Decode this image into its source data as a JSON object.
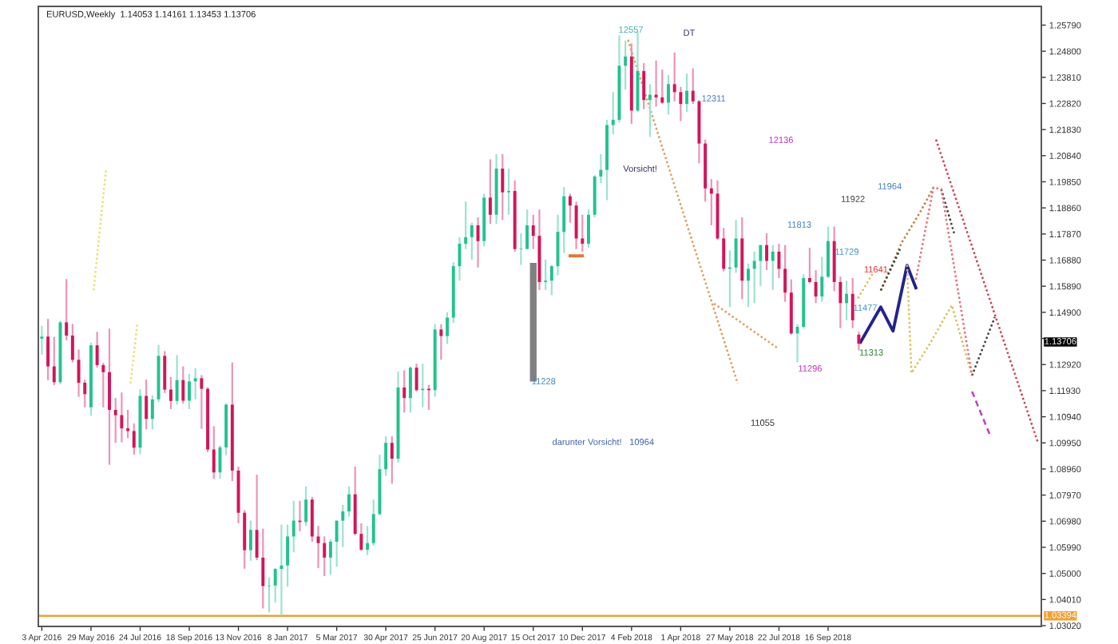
{
  "chart_data": {
    "type": "candlestick",
    "title": "EURUSD,Weekly  1.14053 1.14161 1.13453 1.13706",
    "colors": [
      "#22c38e",
      "#d4145a",
      "#d4145a",
      "#22c38e",
      "#d4145a",
      "#d4145a",
      "#d4145a",
      "#d4145a",
      "#22c38e",
      "#d4145a",
      "#d4145a",
      "#d4145a",
      "#d4145a",
      "#d4145a",
      "#d4145a",
      "#d4145a",
      "#22c38e",
      "#d4145a",
      "#22c38e",
      "#22c38e",
      "#d4145a",
      "#d4145a",
      "#22c38e",
      "#d4145a",
      "#22c38e",
      "#22c38e",
      "#d4145a",
      "#d4145a",
      "#d4145a",
      "#22c38e",
      "#22c38e",
      "#d4145a",
      "#d4145a",
      "#d4145a",
      "#22c38e",
      "#d4145a",
      "#d4145a",
      "#22c38e",
      "#22c38e",
      "#22c38e",
      "#22c38e",
      "#22c38e",
      "#d4145a",
      "#22c38e",
      "#d4145a",
      "#d4145a",
      "#d4145a",
      "#22c38e",
      "#22c38e",
      "#22c38e",
      "#22c38e",
      "#d4145a",
      "#d4145a",
      "#22c38e",
      "#22c38e",
      "#22c38e",
      "#22c38e",
      "#d4145a",
      "#22c38e",
      "#d4145a",
      "#22c38e",
      "#d4145a",
      "#22c38e",
      "#d4145a",
      "#22c38e",
      "#d4145a",
      "#22c38e",
      "#22c38e",
      "#22c38e",
      "#22c38e",
      "#22c38e",
      "#d4145a",
      "#22c38e",
      "#d4145a",
      "#22c38e",
      "#d4145a",
      "#22c38e",
      "#d4145a",
      "#22c38e",
      "#22c38e",
      "#d4145a",
      "#d4145a",
      "#22c38e",
      "#22c38e",
      "#22c38e",
      "#22c38e",
      "#d4145a",
      "#d4145a",
      "#d4145a",
      "#22c38e",
      "#22c38e",
      "#22c38e",
      "#22c38e",
      "#22c38e",
      "#22c38e",
      "#22c38e",
      "#d4145a",
      "#22c38e",
      "#d4145a",
      "#22c38e",
      "#d4145a",
      "#d4145a",
      "#22c38e",
      "#d4145a",
      "#d4145a",
      "#22c38e",
      "#d4145a",
      "#d4145a",
      "#d4145a",
      "#d4145a",
      "#d4145a",
      "#d4145a",
      "#22c38e",
      "#22c38e",
      "#d4145a",
      "#22c38e",
      "#22c38e",
      "#22c38e",
      "#d4145a",
      "#22c38e",
      "#d4145a",
      "#d4145a",
      "#d4145a",
      "#22c38e",
      "#22c38e",
      "#d4145a",
      "#d4145a",
      "#22c38e",
      "#22c38e",
      "#d4145a",
      "#d4145a",
      "#22c38e",
      "#d4145a",
      "#d4145a"
    ],
    "x": [
      "2016-04-03",
      "2016-04-10",
      "2016-04-17",
      "2016-04-24",
      "2016-05-01",
      "2016-05-08",
      "2016-05-15",
      "2016-05-22",
      "2016-05-29",
      "2016-06-05",
      "2016-06-12",
      "2016-06-19",
      "2016-06-26",
      "2016-07-03",
      "2016-07-10",
      "2016-07-17",
      "2016-07-24",
      "2016-07-31",
      "2016-08-07",
      "2016-08-14",
      "2016-08-21",
      "2016-08-28",
      "2016-09-04",
      "2016-09-11",
      "2016-09-18",
      "2016-09-25",
      "2016-10-02",
      "2016-10-09",
      "2016-10-16",
      "2016-10-23",
      "2016-10-30",
      "2016-11-06",
      "2016-11-13",
      "2016-11-20",
      "2016-11-27",
      "2016-12-04",
      "2016-12-11",
      "2016-12-18",
      "2016-12-25",
      "2017-01-01",
      "2017-01-08",
      "2017-01-15",
      "2017-01-22",
      "2017-01-29",
      "2017-02-05",
      "2017-02-12",
      "2017-02-19",
      "2017-02-26",
      "2017-03-05",
      "2017-03-12",
      "2017-03-19",
      "2017-03-26",
      "2017-04-02",
      "2017-04-09",
      "2017-04-16",
      "2017-04-23",
      "2017-04-30",
      "2017-05-07",
      "2017-05-14",
      "2017-05-21",
      "2017-05-28",
      "2017-06-04",
      "2017-06-11",
      "2017-06-18",
      "2017-06-25",
      "2017-07-02",
      "2017-07-09",
      "2017-07-16",
      "2017-07-23",
      "2017-07-30",
      "2017-08-06",
      "2017-08-13",
      "2017-08-20",
      "2017-08-27",
      "2017-09-03",
      "2017-09-10",
      "2017-09-17",
      "2017-09-24",
      "2017-10-01",
      "2017-10-08",
      "2017-10-15",
      "2017-10-22",
      "2017-10-29",
      "2017-11-05",
      "2017-11-12",
      "2017-11-19",
      "2017-11-26",
      "2017-12-03",
      "2017-12-10",
      "2017-12-17",
      "2017-12-24",
      "2017-12-31",
      "2018-01-07",
      "2018-01-14",
      "2018-01-21",
      "2018-01-28",
      "2018-02-04",
      "2018-02-11",
      "2018-02-18",
      "2018-02-25",
      "2018-03-04",
      "2018-03-11",
      "2018-03-18",
      "2018-03-25",
      "2018-04-01",
      "2018-04-08",
      "2018-04-15",
      "2018-04-22",
      "2018-04-29",
      "2018-05-06",
      "2018-05-13",
      "2018-05-20",
      "2018-05-27",
      "2018-06-03",
      "2018-06-10",
      "2018-06-17",
      "2018-06-24",
      "2018-07-01",
      "2018-07-08",
      "2018-07-15",
      "2018-07-22",
      "2018-07-29",
      "2018-08-05",
      "2018-08-12",
      "2018-08-19",
      "2018-08-26",
      "2018-09-02",
      "2018-09-09",
      "2018-09-16",
      "2018-09-23",
      "2018-09-30",
      "2018-10-07",
      "2018-10-14",
      "2018-10-21"
    ],
    "ohlc": [
      [
        1.139,
        1.1438,
        1.133,
        1.1398
      ],
      [
        1.1398,
        1.1465,
        1.1233,
        1.1285
      ],
      [
        1.1285,
        1.1397,
        1.1214,
        1.1225
      ],
      [
        1.1225,
        1.1458,
        1.1217,
        1.1452
      ],
      [
        1.1452,
        1.1616,
        1.1384,
        1.1402
      ],
      [
        1.1402,
        1.1446,
        1.13,
        1.131
      ],
      [
        1.131,
        1.1349,
        1.117,
        1.1223
      ],
      [
        1.1223,
        1.1234,
        1.113,
        1.118
      ],
      [
        1.113,
        1.1375,
        1.1098,
        1.1365
      ],
      [
        1.1365,
        1.1416,
        1.128,
        1.129
      ],
      [
        1.129,
        1.1298,
        1.113,
        1.1263
      ],
      [
        1.1263,
        1.1428,
        1.0912,
        1.112
      ],
      [
        1.112,
        1.1165,
        1.0995,
        1.11
      ],
      [
        1.11,
        1.1186,
        1.0997,
        1.105
      ],
      [
        1.105,
        1.112,
        1.1013,
        1.104
      ],
      [
        1.104,
        1.1068,
        1.095,
        1.0977
      ],
      [
        1.0977,
        1.1198,
        1.0952,
        1.1173
      ],
      [
        1.1173,
        1.1235,
        1.1046,
        1.1086
      ],
      [
        1.1086,
        1.1175,
        1.1046,
        1.116
      ],
      [
        1.116,
        1.1366,
        1.115,
        1.1325
      ],
      [
        1.1325,
        1.1343,
        1.1184,
        1.1197
      ],
      [
        1.1197,
        1.1245,
        1.1123,
        1.1154
      ],
      [
        1.1154,
        1.1328,
        1.114,
        1.1233
      ],
      [
        1.1233,
        1.1285,
        1.1144,
        1.1155
      ],
      [
        1.1155,
        1.1257,
        1.1123,
        1.1228
      ],
      [
        1.1228,
        1.1278,
        1.116,
        1.124
      ],
      [
        1.124,
        1.1252,
        1.1048,
        1.12
      ],
      [
        1.12,
        1.1206,
        1.096,
        1.097
      ],
      [
        1.097,
        1.1058,
        1.0858,
        1.0883
      ],
      [
        1.0883,
        1.0985,
        1.086,
        1.0978
      ],
      [
        1.0978,
        1.1145,
        1.0948,
        1.114
      ],
      [
        1.114,
        1.13,
        1.085,
        1.089
      ],
      [
        1.089,
        1.0905,
        1.069,
        1.073
      ],
      [
        1.073,
        1.074,
        1.0518,
        1.0588
      ],
      [
        1.0588,
        1.07,
        1.0548,
        1.0665
      ],
      [
        1.0665,
        1.0874,
        1.055,
        1.056
      ],
      [
        1.056,
        1.067,
        1.0367,
        1.0452
      ],
      [
        1.0452,
        1.0485,
        1.0352,
        1.0454
      ],
      [
        1.0454,
        1.052,
        1.039,
        1.0517
      ],
      [
        1.0517,
        1.0685,
        1.034,
        1.053
      ],
      [
        1.053,
        1.0685,
        1.045,
        1.064
      ],
      [
        1.064,
        1.0775,
        1.058,
        1.07
      ],
      [
        1.07,
        1.0775,
        1.066,
        1.0695
      ],
      [
        1.0695,
        1.083,
        1.068,
        1.078
      ],
      [
        1.078,
        1.079,
        1.062,
        1.064
      ],
      [
        1.064,
        1.068,
        1.052,
        1.0615
      ],
      [
        1.0615,
        1.064,
        1.049,
        1.056
      ],
      [
        1.056,
        1.063,
        1.0495,
        1.062
      ],
      [
        1.062,
        1.07,
        1.0525,
        1.07
      ],
      [
        1.07,
        1.076,
        1.06,
        1.0735
      ],
      [
        1.0735,
        1.083,
        1.0715,
        1.08
      ],
      [
        1.08,
        1.0905,
        1.0645,
        1.065
      ],
      [
        1.065,
        1.069,
        1.0585,
        1.059
      ],
      [
        1.059,
        1.068,
        1.057,
        1.0615
      ],
      [
        1.0615,
        1.078,
        1.0605,
        1.0725
      ],
      [
        1.0725,
        1.095,
        1.072,
        1.0895
      ],
      [
        1.0895,
        1.102,
        1.087,
        1.0995
      ],
      [
        1.0995,
        1.102,
        1.084,
        1.0935
      ],
      [
        1.0935,
        1.1265,
        1.092,
        1.1205
      ],
      [
        1.1205,
        1.127,
        1.111,
        1.1165
      ],
      [
        1.1165,
        1.1285,
        1.111,
        1.128
      ],
      [
        1.128,
        1.1295,
        1.119,
        1.1195
      ],
      [
        1.1195,
        1.1295,
        1.113,
        1.12
      ],
      [
        1.12,
        1.1215,
        1.112,
        1.1195
      ],
      [
        1.1195,
        1.1445,
        1.117,
        1.1425
      ],
      [
        1.1425,
        1.1445,
        1.131,
        1.14
      ],
      [
        1.14,
        1.149,
        1.137,
        1.147
      ],
      [
        1.147,
        1.168,
        1.145,
        1.1665
      ],
      [
        1.1665,
        1.1775,
        1.161,
        1.175
      ],
      [
        1.175,
        1.191,
        1.173,
        1.1775
      ],
      [
        1.1775,
        1.183,
        1.169,
        1.182
      ],
      [
        1.182,
        1.185,
        1.166,
        1.176
      ],
      [
        1.176,
        1.194,
        1.174,
        1.1925
      ],
      [
        1.1925,
        1.207,
        1.1825,
        1.186
      ],
      [
        1.186,
        1.209,
        1.1825,
        1.2035
      ],
      [
        1.2035,
        1.209,
        1.184,
        1.1945
      ],
      [
        1.1945,
        1.2035,
        1.186,
        1.195
      ],
      [
        1.195,
        1.199,
        1.172,
        1.173
      ],
      [
        1.173,
        1.179,
        1.167,
        1.173
      ],
      [
        1.173,
        1.188,
        1.173,
        1.182
      ],
      [
        1.182,
        1.186,
        1.173,
        1.178
      ],
      [
        1.178,
        1.188,
        1.1575,
        1.1605
      ],
      [
        1.1605,
        1.169,
        1.1575,
        1.161
      ],
      [
        1.161,
        1.167,
        1.1555,
        1.1665
      ],
      [
        1.1665,
        1.186,
        1.163,
        1.1795
      ],
      [
        1.1795,
        1.1965,
        1.1715,
        1.193
      ],
      [
        1.193,
        1.194,
        1.183,
        1.1895
      ],
      [
        1.1895,
        1.191,
        1.173,
        1.177
      ],
      [
        1.177,
        1.186,
        1.172,
        1.175
      ],
      [
        1.175,
        1.188,
        1.1735,
        1.186
      ],
      [
        1.186,
        1.201,
        1.185,
        1.2005
      ],
      [
        1.2005,
        1.209,
        1.198,
        1.203
      ],
      [
        1.203,
        1.222,
        1.1915,
        1.22
      ],
      [
        1.22,
        1.2325,
        1.2165,
        1.222
      ],
      [
        1.222,
        1.254,
        1.221,
        1.2425
      ],
      [
        1.2425,
        1.252,
        1.2335,
        1.246
      ],
      [
        1.246,
        1.251,
        1.2205,
        1.2255
      ],
      [
        1.2255,
        1.2555,
        1.225,
        1.2405
      ],
      [
        1.2405,
        1.2435,
        1.226,
        1.2295
      ],
      [
        1.2295,
        1.2355,
        1.2155,
        1.2315
      ],
      [
        1.2315,
        1.2445,
        1.227,
        1.2305
      ],
      [
        1.2305,
        1.241,
        1.228,
        1.2285
      ],
      [
        1.2285,
        1.239,
        1.224,
        1.2355
      ],
      [
        1.2355,
        1.2475,
        1.229,
        1.2325
      ],
      [
        1.2325,
        1.2345,
        1.2215,
        1.228
      ],
      [
        1.228,
        1.2395,
        1.225,
        1.233
      ],
      [
        1.233,
        1.2415,
        1.228,
        1.229
      ],
      [
        1.229,
        1.2295,
        1.2055,
        1.213
      ],
      [
        1.213,
        1.2145,
        1.191,
        1.196
      ],
      [
        1.196,
        1.1995,
        1.182,
        1.194
      ],
      [
        1.194,
        1.199,
        1.1765,
        1.177
      ],
      [
        1.177,
        1.181,
        1.1645,
        1.1655
      ],
      [
        1.1655,
        1.1725,
        1.151,
        1.166
      ],
      [
        1.166,
        1.184,
        1.164,
        1.177
      ],
      [
        1.177,
        1.185,
        1.154,
        1.161
      ],
      [
        1.161,
        1.1675,
        1.151,
        1.1655
      ],
      [
        1.1655,
        1.172,
        1.1525,
        1.1685
      ],
      [
        1.1685,
        1.1745,
        1.159,
        1.1745
      ],
      [
        1.1745,
        1.179,
        1.165,
        1.1685
      ],
      [
        1.1685,
        1.1745,
        1.1575,
        1.172
      ],
      [
        1.172,
        1.175,
        1.162,
        1.1655
      ],
      [
        1.1655,
        1.1745,
        1.153,
        1.1565
      ],
      [
        1.1565,
        1.1615,
        1.1405,
        1.141
      ],
      [
        1.141,
        1.1445,
        1.13,
        1.1435
      ],
      [
        1.1435,
        1.1635,
        1.143,
        1.162
      ],
      [
        1.162,
        1.1735,
        1.16,
        1.1605
      ],
      [
        1.1605,
        1.165,
        1.1525,
        1.155
      ],
      [
        1.155,
        1.17,
        1.153,
        1.1625
      ],
      [
        1.1625,
        1.1815,
        1.162,
        1.176
      ],
      [
        1.176,
        1.1815,
        1.157,
        1.1605
      ],
      [
        1.1605,
        1.1625,
        1.143,
        1.1525
      ],
      [
        1.1525,
        1.161,
        1.146,
        1.156
      ],
      [
        1.156,
        1.162,
        1.143,
        1.146
      ],
      [
        1.14053,
        1.14161,
        1.13453,
        1.13706
      ]
    ],
    "series": [
      {
        "type": "line",
        "color": "#23238e",
        "line_style": "solid",
        "x": [
          "2018-10-23",
          "2018-11-15",
          "2018-11-29",
          "2018-12-15",
          "2018-12-25"
        ],
        "values": [
          1.1377,
          1.151,
          1.1419,
          1.1668,
          1.1583
        ]
      },
      {
        "type": "line",
        "color": "#d8c060",
        "line_style": "dotted",
        "x": [
          "2018-10-20",
          "2018-11-07"
        ],
        "values": [
          1.1543,
          1.1644
        ]
      },
      {
        "type": "line",
        "color": "#d8c060",
        "line_style": "dotted",
        "x": [
          "2018-12-15",
          "2018-12-20",
          "2019-01-10",
          "2019-02-04",
          "2019-02-27"
        ],
        "values": [
          1.167,
          1.126,
          1.1371,
          1.1517,
          1.125
        ]
      },
      {
        "type": "line",
        "color": "#c08040",
        "line_style": "dotted",
        "x": [
          "2018-11-15",
          "2018-12-09",
          "2018-12-31",
          "2019-01-14"
        ],
        "values": [
          1.1573,
          1.1755,
          1.1876,
          1.1963
        ]
      },
      {
        "type": "line",
        "color": "#404040",
        "line_style": "dotted",
        "x": [
          "2018-11-15",
          "2018-12-07"
        ],
        "values": [
          1.1573,
          1.1729
        ]
      },
      {
        "type": "line",
        "color": "#404040",
        "line_style": "dotted",
        "x": [
          "2019-01-23",
          "2019-02-07"
        ],
        "values": [
          1.1957,
          1.1785
        ]
      },
      {
        "type": "line",
        "color": "#404040",
        "line_style": "dotted",
        "x": [
          "2019-02-27",
          "2019-03-25"
        ],
        "values": [
          1.125,
          1.1472
        ]
      },
      {
        "type": "line",
        "color": "#e07080",
        "line_style": "dotted",
        "x": [
          "2018-12-25",
          "2019-01-14",
          "2019-01-23",
          "2019-02-27"
        ],
        "values": [
          1.1614,
          1.1963,
          1.1957,
          1.125
        ]
      },
      {
        "type": "line",
        "color": "#d04050",
        "line_style": "dotted",
        "x": [
          "2019-01-17",
          "2019-05-13"
        ],
        "values": [
          1.2145,
          1.0997
        ]
      },
      {
        "type": "line",
        "color": "#c040c0",
        "line_style": "dashed",
        "x": [
          "2019-02-27",
          "2019-03-19"
        ],
        "values": [
          1.119,
          1.1028
        ]
      },
      {
        "type": "line",
        "color": "#d8a060",
        "line_style": "dotted",
        "x": [
          "2018-01-31",
          "2018-06-05"
        ],
        "values": [
          1.2523,
          1.122
        ]
      },
      {
        "type": "line",
        "color": "#d8a060",
        "line_style": "dotted",
        "x": [
          "2018-05-09",
          "2018-07-21"
        ],
        "values": [
          1.1523,
          1.1353
        ]
      },
      {
        "type": "line",
        "color": "#e8e070",
        "line_style": "dotted",
        "x": [
          "2016-06-01",
          "2016-06-15"
        ],
        "values": [
          1.1573,
          1.2028
        ]
      },
      {
        "type": "line",
        "color": "#e8e070",
        "line_style": "dotted",
        "x": [
          "2016-07-13",
          "2016-07-21"
        ],
        "values": [
          1.122,
          1.1452
        ]
      },
      {
        "type": "line",
        "color": "#808080",
        "line_style": "solid",
        "x": [
          "2017-10-15",
          "2017-10-15"
        ],
        "values": [
          1.1665,
          1.124
        ]
      },
      {
        "type": "line",
        "color": "#e07830",
        "line_style": "solid",
        "x": [
          "2017-11-26",
          "2017-12-10"
        ],
        "values": [
          1.1704,
          1.1704
        ]
      }
    ],
    "annotations": [
      "12557",
      "DT",
      "12311",
      "Vorsicht!",
      "11228",
      "darunter Vorsicht!",
      "10964",
      "12136",
      "11964",
      "11922",
      "11813",
      "11729",
      "11641",
      "11477",
      "11313",
      "11296",
      "11055",
      "1.13706"
    ],
    "ref_lines": [
      {
        "axis": "y",
        "value": 1.03394,
        "label": "1.03394",
        "color": "#f0a030"
      }
    ],
    "xlim": [
      "2016-03-30",
      "2019-05-17"
    ],
    "xticks": [
      {
        "value": "2016-04-03",
        "label": "3 Apr 2016"
      },
      {
        "value": "2016-05-29",
        "label": "29 May 2016"
      },
      {
        "value": "2016-07-24",
        "label": "24 Jul 2016"
      },
      {
        "value": "2016-09-18",
        "label": "18 Sep 2016"
      },
      {
        "value": "2016-11-13",
        "label": "13 Nov 2016"
      },
      {
        "value": "2017-01-08",
        "label": "8 Jan 2017"
      },
      {
        "value": "2017-03-05",
        "label": "5 Mar 2017"
      },
      {
        "value": "2017-04-30",
        "label": "30 Apr 2017"
      },
      {
        "value": "2017-06-25",
        "label": "25 Jun 2017"
      },
      {
        "value": "2017-08-20",
        "label": "20 Aug 2017"
      },
      {
        "value": "2017-10-15",
        "label": "15 Oct 2017"
      },
      {
        "value": "2017-12-10",
        "label": "10 Dec 2017"
      },
      {
        "value": "2018-02-04",
        "label": "4 Feb 2018"
      },
      {
        "value": "2018-04-01",
        "label": "1 Apr 2018"
      },
      {
        "value": "2018-05-27",
        "label": "27 May 2018"
      },
      {
        "value": "2018-07-22",
        "label": "22 Jul 2018"
      },
      {
        "value": "2018-09-16",
        "label": "16 Sep 2018"
      }
    ],
    "ylim": [
      1.0299,
      1.265
    ],
    "yticks": [
      {
        "value": 1.2579,
        "label": "1.25790"
      },
      {
        "value": 1.248,
        "label": "1.24800"
      },
      {
        "value": 1.2381,
        "label": "1.23810"
      },
      {
        "value": 1.2282,
        "label": "1.22820"
      },
      {
        "value": 1.2183,
        "label": "1.21830"
      },
      {
        "value": 1.2084,
        "label": "1.20840"
      },
      {
        "value": 1.1985,
        "label": "1.19850"
      },
      {
        "value": 1.1886,
        "label": "1.18860"
      },
      {
        "value": 1.1787,
        "label": "1.17870"
      },
      {
        "value": 1.1688,
        "label": "1.16880"
      },
      {
        "value": 1.1589,
        "label": "1.15890"
      },
      {
        "value": 1.149,
        "label": "1.14900"
      },
      {
        "value": 1.1391,
        "label": null
      },
      {
        "value": 1.1292,
        "label": "1.12920"
      },
      {
        "value": 1.1193,
        "label": "1.11930"
      },
      {
        "value": 1.1094,
        "label": "1.10940"
      },
      {
        "value": 1.0995,
        "label": "1.09950"
      },
      {
        "value": 1.0896,
        "label": "1.08960"
      },
      {
        "value": 1.0797,
        "label": "1.07970"
      },
      {
        "value": 1.0698,
        "label": "1.06980"
      },
      {
        "value": 1.0599,
        "label": "1.05990"
      },
      {
        "value": 1.05,
        "label": "1.05000"
      },
      {
        "value": 1.0401,
        "label": "1.04010"
      },
      {
        "value": 1.0302,
        "label": "1.03020"
      }
    ],
    "grid": false,
    "legend": false
  }
}
